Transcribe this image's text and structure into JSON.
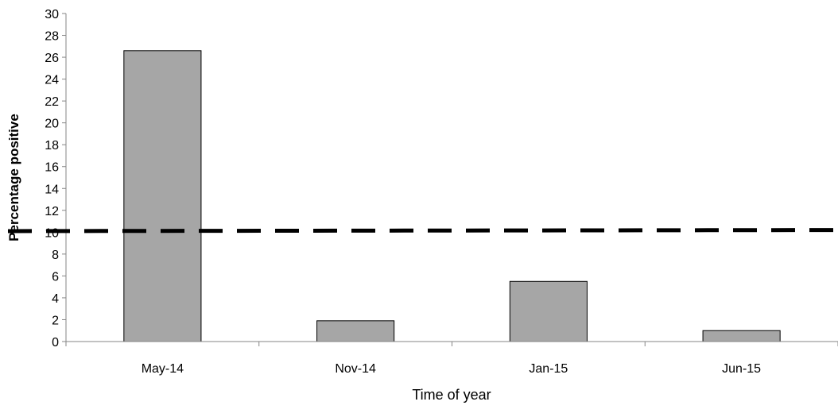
{
  "chart_data": {
    "type": "bar",
    "categories": [
      "May-14",
      "Nov-14",
      "Jan-15",
      "Jun-15"
    ],
    "values": [
      26.6,
      1.9,
      5.5,
      1.0
    ],
    "xlabel": "Time of year",
    "ylabel": "Percentage positive",
    "ylim": [
      0,
      30
    ],
    "yticks": [
      0,
      2,
      4,
      6,
      8,
      10,
      12,
      14,
      16,
      18,
      20,
      22,
      24,
      26,
      28,
      30
    ],
    "reference_line": {
      "y_start": 10.1,
      "y_end": 10.2,
      "style": "dashed",
      "color": "#000000"
    },
    "bar_fill": "#a6a6a6",
    "bar_stroke": "#000000",
    "grid": false,
    "legend": "none"
  }
}
